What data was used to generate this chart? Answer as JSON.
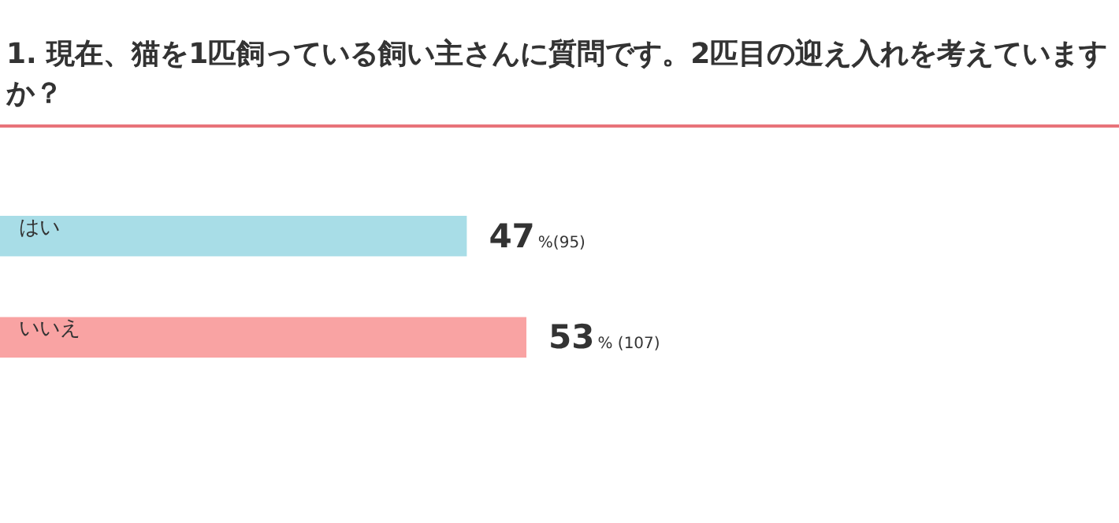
{
  "chart_data": {
    "type": "bar",
    "orientation": "horizontal",
    "title": "1. 現在、猫を1匹飼っている飼い主さんに質問です。2匹目の迎え入れを考えていますか？",
    "categories": [
      "はい",
      "いいえ"
    ],
    "values": [
      47,
      53
    ],
    "colors": [
      "#a8dde7",
      "#f9a3a3"
    ],
    "value_labels": [
      "47%(95)",
      "53% (107)"
    ]
  }
}
